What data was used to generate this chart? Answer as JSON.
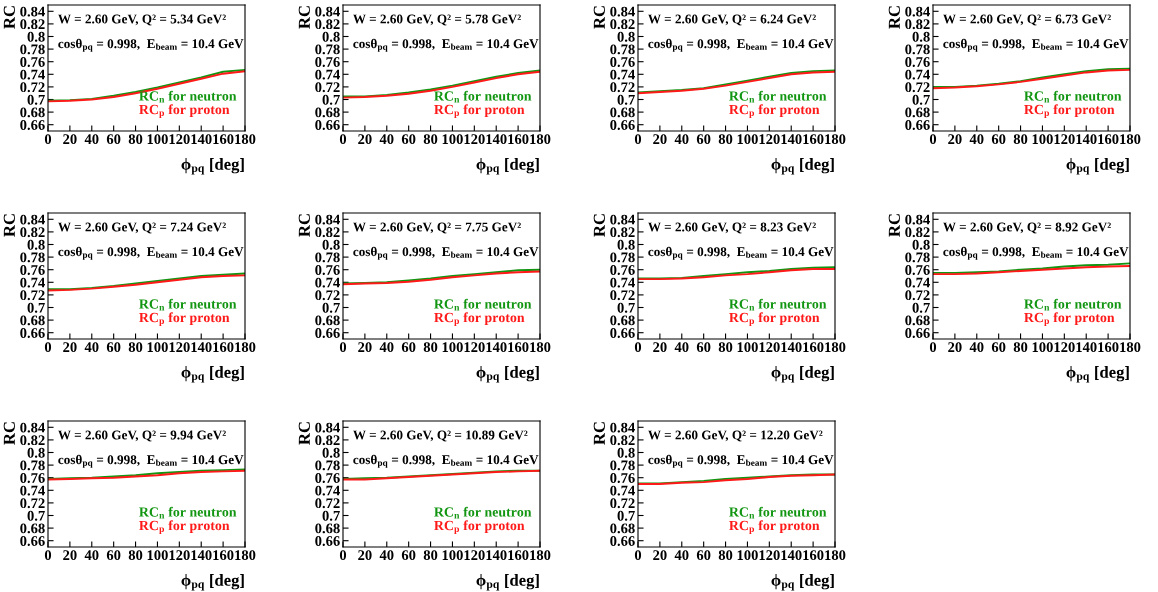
{
  "chart_data": [
    {
      "type": "line",
      "annotations": [
        "W = 2.60 GeV, Q² = 5.34 GeV²",
        "cosθ$_{pq}$ = 0.998,  E$_{beam}$ = 10.4 GeV"
      ],
      "xlabel": "ϕ$_{pq}$ [deg]",
      "ylabel": "RC",
      "x": [
        0,
        20,
        40,
        60,
        80,
        100,
        120,
        140,
        160,
        180
      ],
      "xlim": [
        0,
        180
      ],
      "xticks": [
        0,
        20,
        40,
        60,
        80,
        100,
        120,
        140,
        160,
        180
      ],
      "ylim": [
        0.65,
        0.85
      ],
      "yticks": [
        0.66,
        0.68,
        0.7,
        0.72,
        0.74,
        0.76,
        0.78,
        0.8,
        0.82,
        0.84
      ],
      "legend": "right",
      "marker": "none",
      "line_style": "solid",
      "series": [
        {
          "name": "RC$_{n}$ for neutron",
          "color": "#129612",
          "values": [
            0.698,
            0.699,
            0.701,
            0.706,
            0.712,
            0.719,
            0.727,
            0.735,
            0.744,
            0.747
          ]
        },
        {
          "name": "RC$_{p}$ for proton",
          "color": "#ff1a1a",
          "values": [
            0.697,
            0.698,
            0.7,
            0.704,
            0.71,
            0.717,
            0.725,
            0.733,
            0.741,
            0.745
          ]
        }
      ]
    },
    {
      "type": "line",
      "annotations": [
        "W = 2.60 GeV, Q² = 5.78 GeV²",
        "cosθ$_{pq}$ = 0.998,  E$_{beam}$ = 10.4 GeV"
      ],
      "xlabel": "ϕ$_{pq}$ [deg]",
      "ylabel": "RC",
      "x": [
        0,
        20,
        40,
        60,
        80,
        100,
        120,
        140,
        160,
        180
      ],
      "xlim": [
        0,
        180
      ],
      "xticks": [
        0,
        20,
        40,
        60,
        80,
        100,
        120,
        140,
        160,
        180
      ],
      "ylim": [
        0.65,
        0.85
      ],
      "yticks": [
        0.66,
        0.68,
        0.7,
        0.72,
        0.74,
        0.76,
        0.78,
        0.8,
        0.82,
        0.84
      ],
      "legend": "right",
      "marker": "none",
      "line_style": "solid",
      "series": [
        {
          "name": "RC$_{n}$ for neutron",
          "color": "#129612",
          "values": [
            0.705,
            0.705,
            0.707,
            0.711,
            0.716,
            0.722,
            0.729,
            0.736,
            0.742,
            0.746
          ]
        },
        {
          "name": "RC$_{p}$ for proton",
          "color": "#ff1a1a",
          "values": [
            0.703,
            0.704,
            0.706,
            0.709,
            0.714,
            0.72,
            0.727,
            0.734,
            0.74,
            0.744
          ]
        }
      ]
    },
    {
      "type": "line",
      "annotations": [
        "W = 2.60 GeV, Q² = 6.24 GeV²",
        "cosθ$_{pq}$ = 0.998,  E$_{beam}$ = 10.4 GeV"
      ],
      "xlabel": "ϕ$_{pq}$ [deg]",
      "ylabel": "RC",
      "x": [
        0,
        20,
        40,
        60,
        80,
        100,
        120,
        140,
        160,
        180
      ],
      "xlim": [
        0,
        180
      ],
      "xticks": [
        0,
        20,
        40,
        60,
        80,
        100,
        120,
        140,
        160,
        180
      ],
      "ylim": [
        0.65,
        0.85
      ],
      "yticks": [
        0.66,
        0.68,
        0.7,
        0.72,
        0.74,
        0.76,
        0.78,
        0.8,
        0.82,
        0.84
      ],
      "legend": "right",
      "marker": "none",
      "line_style": "solid",
      "series": [
        {
          "name": "RC$_{n}$ for neutron",
          "color": "#129612",
          "values": [
            0.711,
            0.713,
            0.715,
            0.718,
            0.724,
            0.73,
            0.736,
            0.742,
            0.745,
            0.746
          ]
        },
        {
          "name": "RC$_{p}$ for proton",
          "color": "#ff1a1a",
          "values": [
            0.71,
            0.712,
            0.714,
            0.717,
            0.722,
            0.728,
            0.734,
            0.74,
            0.743,
            0.744
          ]
        }
      ]
    },
    {
      "type": "line",
      "annotations": [
        "W = 2.60 GeV, Q² = 6.73 GeV²",
        "cosθ$_{pq}$ = 0.998,  E$_{beam}$ = 10.4 GeV"
      ],
      "xlabel": "ϕ$_{pq}$ [deg]",
      "ylabel": "RC",
      "x": [
        0,
        20,
        40,
        60,
        80,
        100,
        120,
        140,
        160,
        180
      ],
      "xlim": [
        0,
        180
      ],
      "xticks": [
        0,
        20,
        40,
        60,
        80,
        100,
        120,
        140,
        160,
        180
      ],
      "ylim": [
        0.65,
        0.85
      ],
      "yticks": [
        0.66,
        0.68,
        0.7,
        0.72,
        0.74,
        0.76,
        0.78,
        0.8,
        0.82,
        0.84
      ],
      "legend": "right",
      "marker": "none",
      "line_style": "solid",
      "series": [
        {
          "name": "RC$_{n}$ for neutron",
          "color": "#129612",
          "values": [
            0.72,
            0.72,
            0.722,
            0.725,
            0.729,
            0.735,
            0.74,
            0.745,
            0.748,
            0.749
          ]
        },
        {
          "name": "RC$_{p}$ for proton",
          "color": "#ff1a1a",
          "values": [
            0.718,
            0.719,
            0.721,
            0.724,
            0.728,
            0.733,
            0.738,
            0.743,
            0.746,
            0.747
          ]
        }
      ]
    },
    {
      "type": "line",
      "annotations": [
        "W = 2.60 GeV, Q² = 7.24 GeV²",
        "cosθ$_{pq}$ = 0.998,  E$_{beam}$ = 10.4 GeV"
      ],
      "xlabel": "ϕ$_{pq}$ [deg]",
      "ylabel": "RC",
      "x": [
        0,
        20,
        40,
        60,
        80,
        100,
        120,
        140,
        160,
        180
      ],
      "xlim": [
        0,
        180
      ],
      "xticks": [
        0,
        20,
        40,
        60,
        80,
        100,
        120,
        140,
        160,
        180
      ],
      "ylim": [
        0.65,
        0.85
      ],
      "yticks": [
        0.66,
        0.68,
        0.7,
        0.72,
        0.74,
        0.76,
        0.78,
        0.8,
        0.82,
        0.84
      ],
      "legend": "right",
      "marker": "none",
      "line_style": "solid",
      "series": [
        {
          "name": "RC$_{n}$ for neutron",
          "color": "#129612",
          "values": [
            0.729,
            0.729,
            0.731,
            0.734,
            0.738,
            0.742,
            0.746,
            0.75,
            0.752,
            0.754
          ]
        },
        {
          "name": "RC$_{p}$ for proton",
          "color": "#ff1a1a",
          "values": [
            0.727,
            0.728,
            0.73,
            0.733,
            0.736,
            0.74,
            0.744,
            0.748,
            0.75,
            0.751
          ]
        }
      ]
    },
    {
      "type": "line",
      "annotations": [
        "W = 2.60 GeV, Q² = 7.75 GeV²",
        "cosθ$_{pq}$ = 0.998,  E$_{beam}$ = 10.4 GeV"
      ],
      "xlabel": "ϕ$_{pq}$ [deg]",
      "ylabel": "RC",
      "x": [
        0,
        20,
        40,
        60,
        80,
        100,
        120,
        140,
        160,
        180
      ],
      "xlim": [
        0,
        180
      ],
      "xticks": [
        0,
        20,
        40,
        60,
        80,
        100,
        120,
        140,
        160,
        180
      ],
      "ylim": [
        0.65,
        0.85
      ],
      "yticks": [
        0.66,
        0.68,
        0.7,
        0.72,
        0.74,
        0.76,
        0.78,
        0.8,
        0.82,
        0.84
      ],
      "legend": "right",
      "marker": "none",
      "line_style": "solid",
      "series": [
        {
          "name": "RC$_{n}$ for neutron",
          "color": "#129612",
          "values": [
            0.738,
            0.739,
            0.74,
            0.743,
            0.746,
            0.75,
            0.753,
            0.756,
            0.759,
            0.76
          ]
        },
        {
          "name": "RC$_{p}$ for proton",
          "color": "#ff1a1a",
          "values": [
            0.737,
            0.738,
            0.739,
            0.741,
            0.744,
            0.748,
            0.751,
            0.754,
            0.756,
            0.757
          ]
        }
      ]
    },
    {
      "type": "line",
      "annotations": [
        "W = 2.60 GeV, Q² = 8.23 GeV²",
        "cosθ$_{pq}$ = 0.998,  E$_{beam}$ = 10.4 GeV"
      ],
      "xlabel": "ϕ$_{pq}$ [deg]",
      "ylabel": "RC",
      "x": [
        0,
        20,
        40,
        60,
        80,
        100,
        120,
        140,
        160,
        180
      ],
      "xlim": [
        0,
        180
      ],
      "xticks": [
        0,
        20,
        40,
        60,
        80,
        100,
        120,
        140,
        160,
        180
      ],
      "ylim": [
        0.65,
        0.85
      ],
      "yticks": [
        0.66,
        0.68,
        0.7,
        0.72,
        0.74,
        0.76,
        0.78,
        0.8,
        0.82,
        0.84
      ],
      "legend": "right",
      "marker": "none",
      "line_style": "solid",
      "series": [
        {
          "name": "RC$_{n}$ for neutron",
          "color": "#129612",
          "values": [
            0.746,
            0.746,
            0.747,
            0.75,
            0.753,
            0.756,
            0.758,
            0.761,
            0.763,
            0.764
          ]
        },
        {
          "name": "RC$_{p}$ for proton",
          "color": "#ff1a1a",
          "values": [
            0.745,
            0.745,
            0.746,
            0.748,
            0.751,
            0.753,
            0.756,
            0.759,
            0.761,
            0.761
          ]
        }
      ]
    },
    {
      "type": "line",
      "annotations": [
        "W = 2.60 GeV, Q² = 8.92 GeV²",
        "cosθ$_{pq}$ = 0.998,  E$_{beam}$ = 10.4 GeV"
      ],
      "xlabel": "ϕ$_{pq}$ [deg]",
      "ylabel": "RC",
      "x": [
        0,
        20,
        40,
        60,
        80,
        100,
        120,
        140,
        160,
        180
      ],
      "xlim": [
        0,
        180
      ],
      "xticks": [
        0,
        20,
        40,
        60,
        80,
        100,
        120,
        140,
        160,
        180
      ],
      "ylim": [
        0.65,
        0.85
      ],
      "yticks": [
        0.66,
        0.68,
        0.7,
        0.72,
        0.74,
        0.76,
        0.78,
        0.8,
        0.82,
        0.84
      ],
      "legend": "right",
      "marker": "none",
      "line_style": "solid",
      "series": [
        {
          "name": "RC$_{n}$ for neutron",
          "color": "#129612",
          "values": [
            0.755,
            0.755,
            0.756,
            0.757,
            0.76,
            0.762,
            0.765,
            0.767,
            0.768,
            0.77
          ]
        },
        {
          "name": "RC$_{p}$ for proton",
          "color": "#ff1a1a",
          "values": [
            0.753,
            0.753,
            0.754,
            0.756,
            0.758,
            0.76,
            0.762,
            0.764,
            0.765,
            0.766
          ]
        }
      ]
    },
    {
      "type": "line",
      "annotations": [
        "W = 2.60 GeV, Q² = 9.94 GeV²",
        "cosθ$_{pq}$ = 0.998,  E$_{beam}$ = 10.4 GeV"
      ],
      "xlabel": "ϕ$_{pq}$ [deg]",
      "ylabel": "RC",
      "x": [
        0,
        20,
        40,
        60,
        80,
        100,
        120,
        140,
        160,
        180
      ],
      "xlim": [
        0,
        180
      ],
      "xticks": [
        0,
        20,
        40,
        60,
        80,
        100,
        120,
        140,
        160,
        180
      ],
      "ylim": [
        0.65,
        0.85
      ],
      "yticks": [
        0.66,
        0.68,
        0.7,
        0.72,
        0.74,
        0.76,
        0.78,
        0.8,
        0.82,
        0.84
      ],
      "legend": "right",
      "marker": "none",
      "line_style": "solid",
      "series": [
        {
          "name": "RC$_{n}$ for neutron",
          "color": "#129612",
          "values": [
            0.758,
            0.759,
            0.76,
            0.762,
            0.764,
            0.767,
            0.769,
            0.771,
            0.772,
            0.773
          ]
        },
        {
          "name": "RC$_{p}$ for proton",
          "color": "#ff1a1a",
          "values": [
            0.757,
            0.758,
            0.759,
            0.76,
            0.762,
            0.764,
            0.767,
            0.769,
            0.77,
            0.771
          ]
        }
      ]
    },
    {
      "type": "line",
      "annotations": [
        "W = 2.60 GeV, Q² = 10.89 GeV²",
        "cosθ$_{pq}$ = 0.998,  E$_{beam}$ = 10.4 GeV"
      ],
      "xlabel": "ϕ$_{pq}$ [deg]",
      "ylabel": "RC",
      "x": [
        0,
        20,
        40,
        60,
        80,
        100,
        120,
        140,
        160,
        180
      ],
      "xlim": [
        0,
        180
      ],
      "xticks": [
        0,
        20,
        40,
        60,
        80,
        100,
        120,
        140,
        160,
        180
      ],
      "ylim": [
        0.65,
        0.85
      ],
      "yticks": [
        0.66,
        0.68,
        0.7,
        0.72,
        0.74,
        0.76,
        0.78,
        0.8,
        0.82,
        0.84
      ],
      "legend": "right",
      "marker": "none",
      "line_style": "solid",
      "series": [
        {
          "name": "RC$_{n}$ for neutron",
          "color": "#129612",
          "values": [
            0.758,
            0.759,
            0.76,
            0.762,
            0.764,
            0.766,
            0.768,
            0.77,
            0.771,
            0.771
          ]
        },
        {
          "name": "RC$_{p}$ for proton",
          "color": "#ff1a1a",
          "values": [
            0.757,
            0.757,
            0.759,
            0.761,
            0.763,
            0.765,
            0.767,
            0.769,
            0.77,
            0.771
          ]
        }
      ]
    },
    {
      "type": "line",
      "annotations": [
        "W = 2.60 GeV, Q² = 12.20 GeV²",
        "cosθ$_{pq}$ = 0.998,  E$_{beam}$ = 10.4 GeV"
      ],
      "xlabel": "ϕ$_{pq}$ [deg]",
      "ylabel": "RC",
      "x": [
        0,
        20,
        40,
        60,
        80,
        100,
        120,
        140,
        160,
        180
      ],
      "xlim": [
        0,
        180
      ],
      "xticks": [
        0,
        20,
        40,
        60,
        80,
        100,
        120,
        140,
        160,
        180
      ],
      "ylim": [
        0.65,
        0.85
      ],
      "yticks": [
        0.66,
        0.68,
        0.7,
        0.72,
        0.74,
        0.76,
        0.78,
        0.8,
        0.82,
        0.84
      ],
      "legend": "right",
      "marker": "none",
      "line_style": "solid",
      "series": [
        {
          "name": "RC$_{n}$ for neutron",
          "color": "#129612",
          "values": [
            0.751,
            0.751,
            0.753,
            0.755,
            0.758,
            0.76,
            0.762,
            0.764,
            0.765,
            0.765
          ]
        },
        {
          "name": "RC$_{p}$ for proton",
          "color": "#ff1a1a",
          "values": [
            0.75,
            0.75,
            0.752,
            0.753,
            0.756,
            0.758,
            0.761,
            0.763,
            0.764,
            0.765
          ]
        }
      ]
    }
  ]
}
